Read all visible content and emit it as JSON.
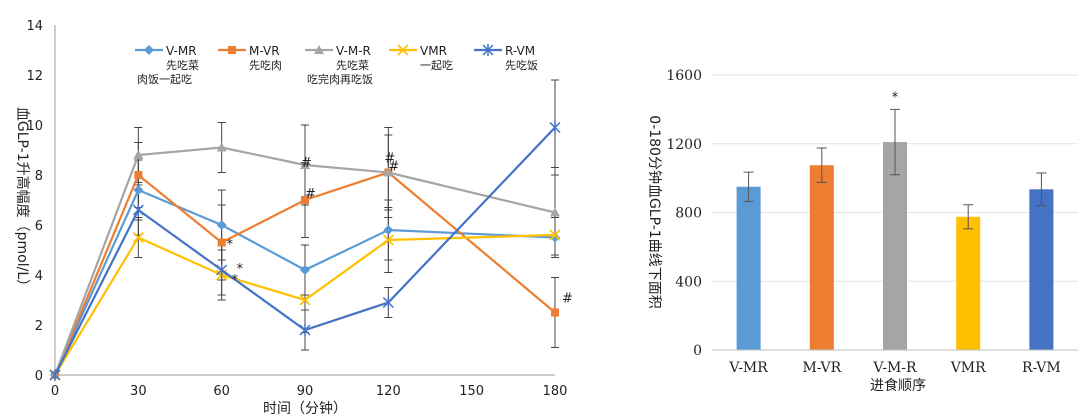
{
  "chart_data": [
    {
      "type": "line",
      "xlabel": "时间（分钟）",
      "ylabel": "血GLP-1升高幅度（pmol/L）",
      "x": [
        0,
        30,
        60,
        90,
        120,
        180
      ],
      "x_ticks": [
        "0",
        "30",
        "60",
        "90",
        "120",
        "150",
        "180"
      ],
      "xlim": [
        0,
        180
      ],
      "ylim": [
        0,
        14
      ],
      "y_ticks": [
        "0",
        "2",
        "4",
        "6",
        "8",
        "10",
        "12",
        "14"
      ],
      "legend_position": "top",
      "series": [
        {
          "name": "V-MR",
          "desc": [
            "先吃菜",
            "肉饭一起吃"
          ],
          "color": "#5b9bd5",
          "marker": "diamond",
          "values": [
            0,
            7.4,
            6.0,
            4.2,
            5.8,
            5.5
          ],
          "err": [
            0,
            1.2,
            1.4,
            1.0,
            1.2,
            0.8
          ]
        },
        {
          "name": "M-VR",
          "desc": [
            "先吃肉"
          ],
          "color": "#ed7d31",
          "marker": "square",
          "values": [
            0,
            8.0,
            5.3,
            7.0,
            8.1,
            2.5
          ],
          "err": [
            0,
            1.3,
            1.5,
            1.5,
            1.5,
            1.4
          ]
        },
        {
          "name": "V-M-R",
          "desc": [
            "先吃菜",
            "吃完肉再吃饭"
          ],
          "color": "#a5a5a5",
          "marker": "triangle",
          "values": [
            0,
            8.8,
            9.1,
            8.4,
            8.1,
            6.5
          ],
          "err": [
            0,
            1.1,
            1.0,
            1.6,
            1.8,
            1.8
          ]
        },
        {
          "name": "VMR",
          "desc": [
            "一起吃"
          ],
          "color": "#ffc000",
          "marker": "x",
          "values": [
            0,
            5.5,
            4.0,
            3.0,
            5.4,
            5.6
          ],
          "err": [
            0,
            0.8,
            1.0,
            1.3,
            1.3,
            0.8
          ]
        },
        {
          "name": "R-VM",
          "desc": [
            "先吃饭"
          ],
          "color": "#4472c4",
          "marker": "star",
          "values": [
            0,
            6.6,
            4.2,
            1.8,
            2.9,
            9.9
          ],
          "err": [
            0,
            1.0,
            1.0,
            0.8,
            0.6,
            1.9
          ]
        }
      ],
      "annotations": [
        {
          "x": 60,
          "y": 5.3,
          "text": "*"
        },
        {
          "x": 60,
          "y": 4.0,
          "text": "*"
        },
        {
          "x": 60,
          "y": 4.2,
          "text": "*"
        },
        {
          "x": 90,
          "y": 8.4,
          "text": "#"
        },
        {
          "x": 90,
          "y": 7.0,
          "text": "#"
        },
        {
          "x": 120,
          "y": 8.1,
          "text": "#"
        },
        {
          "x": 120,
          "y": 8.1,
          "text": "#"
        },
        {
          "x": 180,
          "y": 2.5,
          "text": "#"
        }
      ]
    },
    {
      "type": "bar",
      "xlabel": "进食顺序",
      "ylabel": "0-180分钟血GLP-1曲线下面积",
      "categories": [
        "V-MR",
        "M-VR",
        "V-M-R",
        "VMR",
        "R-VM"
      ],
      "values": [
        950,
        1075,
        1210,
        775,
        935
      ],
      "err": [
        85,
        100,
        190,
        70,
        95
      ],
      "colors": [
        "#5b9bd5",
        "#ed7d31",
        "#a5a5a5",
        "#ffc000",
        "#4472c4"
      ],
      "ylim": [
        0,
        1600
      ],
      "y_ticks": [
        "0",
        "400",
        "800",
        "1200",
        "1600"
      ],
      "annotations": [
        {
          "category": "V-M-R",
          "text": "*"
        }
      ]
    }
  ]
}
